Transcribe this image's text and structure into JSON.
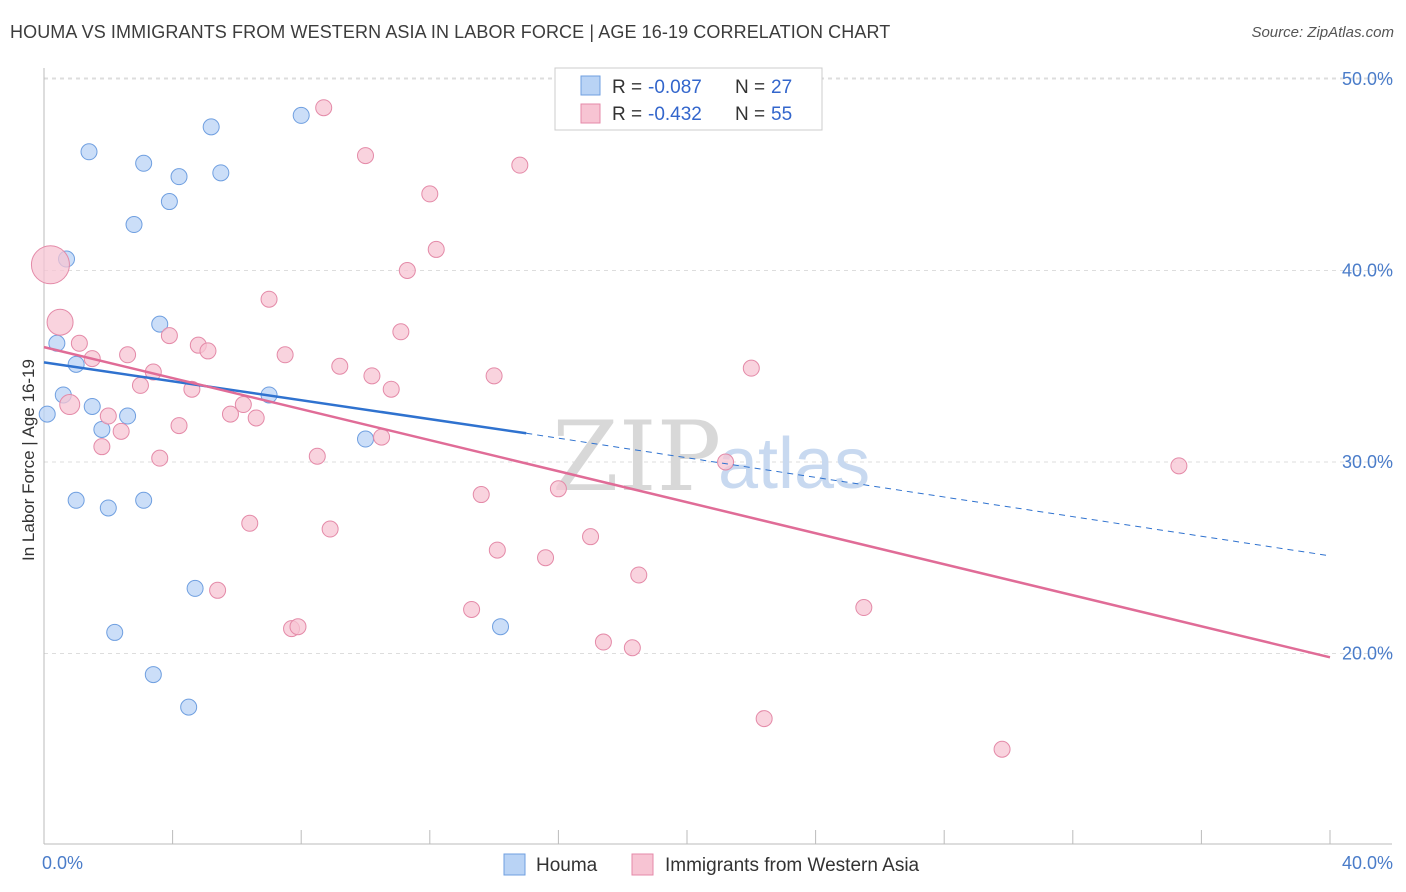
{
  "title": "HOUMA VS IMMIGRANTS FROM WESTERN ASIA IN LABOR FORCE | AGE 16-19 CORRELATION CHART",
  "source": "Source: ZipAtlas.com",
  "watermark": {
    "zip": "ZIP",
    "atlas": "atlas"
  },
  "legend": {
    "rows": [
      {
        "r_label": "R =",
        "r_value": "-0.087",
        "n_label": "N =",
        "n_value": "27"
      },
      {
        "r_label": "R =",
        "r_value": "-0.432",
        "n_label": "N =",
        "n_value": "55"
      }
    ]
  },
  "colors": {
    "houma_fill": "#b9d3f5",
    "houma_stroke": "#6f9fe0",
    "houma_line": "#2f72cf",
    "imm_fill": "#f7c4d3",
    "imm_stroke": "#e48aa8",
    "imm_line": "#e06c97",
    "grid": "#dddddd",
    "axis_text": "#4a7cc9"
  },
  "chart_data": {
    "type": "scatter",
    "title": "HOUMA VS IMMIGRANTS FROM WESTERN ASIA IN LABOR FORCE | AGE 16-19 CORRELATION CHART",
    "xlabel": "",
    "ylabel": "In Labor Force | Age 16-19",
    "xlim": [
      0,
      40
    ],
    "ylim": [
      10,
      52
    ],
    "x_tick_labels": [
      "0.0%",
      "40.0%"
    ],
    "y_ticks": [
      20,
      30,
      40,
      50
    ],
    "y_tick_labels": [
      "20.0%",
      "30.0%",
      "40.0%",
      "50.0%"
    ],
    "series": [
      {
        "name": "Houma",
        "points": [
          [
            0.1,
            32.5
          ],
          [
            0.4,
            36.2
          ],
          [
            0.7,
            40.6
          ],
          [
            0.6,
            33.5
          ],
          [
            1.4,
            46.2
          ],
          [
            1.0,
            35.1
          ],
          [
            1.5,
            32.9
          ],
          [
            1.8,
            31.7
          ],
          [
            1.0,
            28.0
          ],
          [
            2.0,
            27.6
          ],
          [
            2.6,
            32.4
          ],
          [
            3.1,
            45.6
          ],
          [
            2.8,
            42.4
          ],
          [
            3.6,
            37.2
          ],
          [
            3.9,
            43.6
          ],
          [
            4.2,
            44.9
          ],
          [
            5.2,
            47.5
          ],
          [
            5.5,
            45.1
          ],
          [
            8.0,
            48.1
          ],
          [
            7.0,
            33.5
          ],
          [
            10.0,
            31.2
          ],
          [
            3.1,
            28.0
          ],
          [
            4.7,
            23.4
          ],
          [
            2.2,
            21.1
          ],
          [
            3.4,
            18.9
          ],
          [
            4.5,
            17.2
          ],
          [
            14.2,
            21.4
          ]
        ],
        "trend": {
          "x": [
            0.0,
            15.0
          ],
          "y": [
            35.2,
            31.5
          ],
          "dashed_to": [
            40.0,
            25.1
          ]
        }
      },
      {
        "name": "Immigrants from Western Asia",
        "points": [
          [
            0.2,
            40.3
          ],
          [
            0.5,
            37.3
          ],
          [
            0.8,
            33.0
          ],
          [
            1.1,
            36.2
          ],
          [
            1.5,
            35.4
          ],
          [
            1.8,
            30.8
          ],
          [
            2.0,
            32.4
          ],
          [
            2.4,
            31.6
          ],
          [
            2.6,
            35.6
          ],
          [
            3.0,
            34.0
          ],
          [
            3.4,
            34.7
          ],
          [
            3.6,
            30.2
          ],
          [
            3.9,
            36.6
          ],
          [
            4.2,
            31.9
          ],
          [
            4.6,
            33.8
          ],
          [
            4.8,
            36.1
          ],
          [
            5.1,
            35.8
          ],
          [
            5.4,
            23.3
          ],
          [
            5.8,
            32.5
          ],
          [
            6.2,
            33.0
          ],
          [
            6.4,
            26.8
          ],
          [
            6.6,
            32.3
          ],
          [
            7.0,
            38.5
          ],
          [
            7.5,
            35.6
          ],
          [
            7.7,
            21.3
          ],
          [
            7.9,
            21.4
          ],
          [
            8.5,
            30.3
          ],
          [
            8.7,
            48.5
          ],
          [
            8.9,
            26.5
          ],
          [
            9.2,
            35.0
          ],
          [
            10.0,
            46.0
          ],
          [
            10.2,
            34.5
          ],
          [
            10.5,
            31.3
          ],
          [
            10.8,
            33.8
          ],
          [
            11.1,
            36.8
          ],
          [
            11.3,
            40.0
          ],
          [
            12.0,
            44.0
          ],
          [
            12.2,
            41.1
          ],
          [
            13.3,
            22.3
          ],
          [
            13.6,
            28.3
          ],
          [
            14.0,
            34.5
          ],
          [
            14.1,
            25.4
          ],
          [
            14.8,
            45.5
          ],
          [
            15.6,
            25.0
          ],
          [
            16.0,
            28.6
          ],
          [
            17.0,
            26.1
          ],
          [
            17.4,
            20.6
          ],
          [
            18.3,
            20.3
          ],
          [
            18.5,
            24.1
          ],
          [
            21.2,
            30.0
          ],
          [
            22.0,
            34.9
          ],
          [
            22.4,
            16.6
          ],
          [
            25.5,
            22.4
          ],
          [
            29.8,
            15.0
          ],
          [
            35.3,
            29.8
          ]
        ],
        "trend": {
          "x": [
            0.0,
            40.0
          ],
          "y": [
            36.0,
            19.8
          ]
        }
      }
    ],
    "legend_position": "bottom-center"
  },
  "bottom_legend": [
    "Houma",
    "Immigrants from Western Asia"
  ]
}
